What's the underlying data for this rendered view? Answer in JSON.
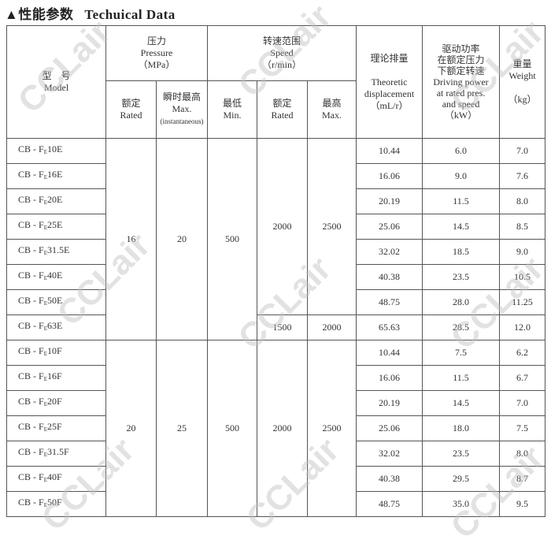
{
  "title": {
    "marker": "▲",
    "zh": "性能参数",
    "en": "Techuical Data"
  },
  "watermark": "CCLair",
  "header": {
    "model": {
      "zh": "型　号",
      "en": "Model"
    },
    "pressure": {
      "zh": "压力",
      "en": "Pressure",
      "unit": "（MPa）"
    },
    "pressure_rated": {
      "zh": "额定",
      "en": "Rated"
    },
    "pressure_max": {
      "zh": "瞬时最高",
      "en": "Max.",
      "note": "(instantaneous)"
    },
    "speed": {
      "zh": "转速范围",
      "en": "Speed",
      "unit": "（r/min）"
    },
    "speed_min": {
      "zh": "最低",
      "en": "Min."
    },
    "speed_rated": {
      "zh": "额定",
      "en": "Rated"
    },
    "speed_max": {
      "zh": "最高",
      "en": "Max."
    },
    "displacement": {
      "zh": "理论排量",
      "en1": "Theoretic",
      "en2": "displacement",
      "unit": "（mL/r）"
    },
    "power": {
      "zh1": "驱动功率",
      "zh2": "在额定压力",
      "zh3": "下额定转速",
      "en1": "Driving power",
      "en2": "at rated pres.",
      "en3": "and speed",
      "unit": "（kW）"
    },
    "weight": {
      "zh": "重量",
      "en": "Weight",
      "unit": "（kg）"
    }
  },
  "groups": [
    {
      "pressure_rated": "16",
      "pressure_max": "20",
      "speed_min": "500",
      "speed_rated": "2000",
      "speed_max": "2500",
      "speed_rated_last": "1500",
      "speed_max_last": "2000"
    },
    {
      "pressure_rated": "20",
      "pressure_max": "25",
      "speed_min": "500",
      "speed_rated": "2000",
      "speed_max": "2500"
    }
  ],
  "rows": [
    {
      "prefix": "CB - F",
      "sub": "E",
      "suffix": "10E",
      "disp": "10.44",
      "power": "6.0",
      "weight": "7.0"
    },
    {
      "prefix": "CB - F",
      "sub": "E",
      "suffix": "16E",
      "disp": "16.06",
      "power": "9.0",
      "weight": "7.6"
    },
    {
      "prefix": "CB - F",
      "sub": "E",
      "suffix": "20E",
      "disp": "20.19",
      "power": "11.5",
      "weight": "8.0"
    },
    {
      "prefix": "CB - F",
      "sub": "E",
      "suffix": "25E",
      "disp": "25.06",
      "power": "14.5",
      "weight": "8.5"
    },
    {
      "prefix": "CB - F",
      "sub": "E",
      "suffix": "31.5E",
      "disp": "32.02",
      "power": "18.5",
      "weight": "9.0"
    },
    {
      "prefix": "CB - F",
      "sub": "E",
      "suffix": "40E",
      "disp": "40.38",
      "power": "23.5",
      "weight": "10.5"
    },
    {
      "prefix": "CB - F",
      "sub": "E",
      "suffix": "50E",
      "disp": "48.75",
      "power": "28.0",
      "weight": "11.25"
    },
    {
      "prefix": "CB - F",
      "sub": "E",
      "suffix": "63E",
      "disp": "65.63",
      "power": "28.5",
      "weight": "12.0"
    },
    {
      "prefix": "CB - F",
      "sub": "E",
      "suffix": "10F",
      "disp": "10.44",
      "power": "7.5",
      "weight": "6.2"
    },
    {
      "prefix": "CB - F",
      "sub": "E",
      "suffix": "16F",
      "disp": "16.06",
      "power": "11.5",
      "weight": "6.7"
    },
    {
      "prefix": "CB - F",
      "sub": "E",
      "suffix": "20F",
      "disp": "20.19",
      "power": "14.5",
      "weight": "7.0"
    },
    {
      "prefix": "CB - F",
      "sub": "E",
      "suffix": "25F",
      "disp": "25.06",
      "power": "18.0",
      "weight": "7.5"
    },
    {
      "prefix": "CB - F",
      "sub": "E",
      "suffix": "31.5F",
      "disp": "32.02",
      "power": "23.5",
      "weight": "8.0"
    },
    {
      "prefix": "CB - F",
      "sub": "E",
      "suffix": "40F",
      "disp": "40.38",
      "power": "29.5",
      "weight": "8.7"
    },
    {
      "prefix": "CB - F",
      "sub": "E",
      "suffix": "50F",
      "disp": "48.75",
      "power": "35.0",
      "weight": "9.5"
    }
  ]
}
